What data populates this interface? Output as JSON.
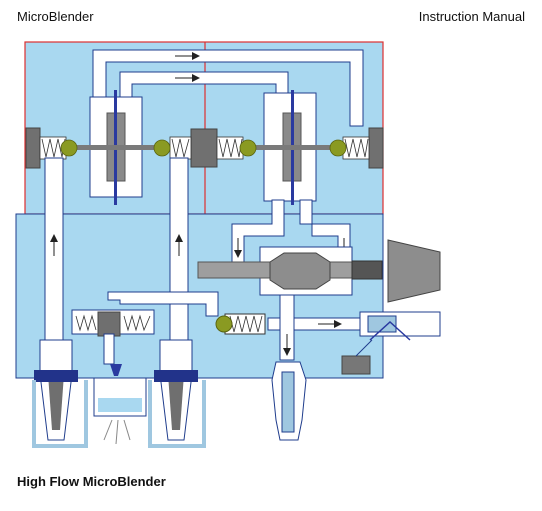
{
  "header": {
    "left": "MicroBlender",
    "right": "Instruction Manual"
  },
  "figure": {
    "caption": "High Flow MicroBlender"
  },
  "colors": {
    "manifold": "#a9d8f0",
    "channel": "#ffffff",
    "outline": "#1f3c8c",
    "red_frame": "#dd2f2f",
    "spring_ball": "#8a9a22",
    "metal_dark": "#6f6f6f",
    "metal_mid": "#9e9e9e",
    "diaphragm": "#2a3aa0",
    "seal": "#22338a"
  },
  "icons": {
    "flow_arrow": "arrow-icon",
    "spray": "spray-nozzle-icon"
  }
}
